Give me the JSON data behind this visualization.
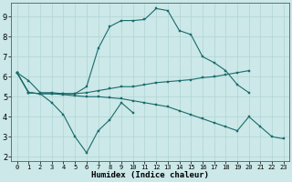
{
  "xlabel": "Humidex (Indice chaleur)",
  "background_color": "#cce8e8",
  "grid_color": "#b0d4d4",
  "line_color": "#1a6b6b",
  "xlim": [
    -0.5,
    23.5
  ],
  "ylim": [
    1.8,
    9.7
  ],
  "yticks": [
    2,
    3,
    4,
    5,
    6,
    7,
    8,
    9
  ],
  "xticks": [
    0,
    1,
    2,
    3,
    4,
    5,
    6,
    7,
    8,
    9,
    10,
    11,
    12,
    13,
    14,
    15,
    16,
    17,
    18,
    19,
    20,
    21,
    22,
    23
  ],
  "line1_x": [
    0,
    1,
    2,
    3,
    4,
    5,
    6,
    7,
    8,
    9,
    10,
    11,
    12,
    13,
    14,
    15,
    16,
    17,
    18,
    19,
    20
  ],
  "line1_y": [
    6.2,
    5.8,
    5.2,
    5.2,
    5.15,
    5.15,
    5.5,
    7.4,
    8.5,
    8.8,
    8.8,
    8.85,
    9.4,
    9.3,
    8.3,
    8.1,
    7.0,
    6.7,
    6.3,
    5.6,
    5.2
  ],
  "line2_x": [
    0,
    1,
    2,
    3,
    4,
    5,
    6,
    7,
    8,
    9,
    10
  ],
  "line2_y": [
    6.2,
    5.2,
    5.15,
    4.7,
    4.1,
    3.0,
    2.2,
    3.3,
    3.85,
    4.7,
    4.2
  ],
  "line3_x": [
    0,
    1,
    2,
    3,
    4,
    5,
    6,
    7,
    8,
    9,
    10,
    11,
    12,
    13,
    14,
    15,
    16,
    17,
    18,
    19,
    20
  ],
  "line3_y": [
    6.2,
    5.2,
    5.15,
    5.15,
    5.15,
    5.15,
    5.2,
    5.3,
    5.4,
    5.5,
    5.5,
    5.6,
    5.7,
    5.75,
    5.8,
    5.85,
    5.95,
    6.0,
    6.1,
    6.2,
    6.3
  ],
  "line4_x": [
    0,
    1,
    2,
    3,
    4,
    5,
    6,
    7,
    8,
    9,
    10,
    11,
    12,
    13,
    14,
    15,
    16,
    17,
    18,
    19,
    20,
    21,
    22,
    23
  ],
  "line4_y": [
    6.2,
    5.2,
    5.15,
    5.15,
    5.1,
    5.05,
    5.0,
    5.0,
    4.95,
    4.9,
    4.8,
    4.7,
    4.6,
    4.5,
    4.3,
    4.1,
    3.9,
    3.7,
    3.5,
    3.3,
    4.0,
    3.5,
    3.0,
    2.9
  ]
}
